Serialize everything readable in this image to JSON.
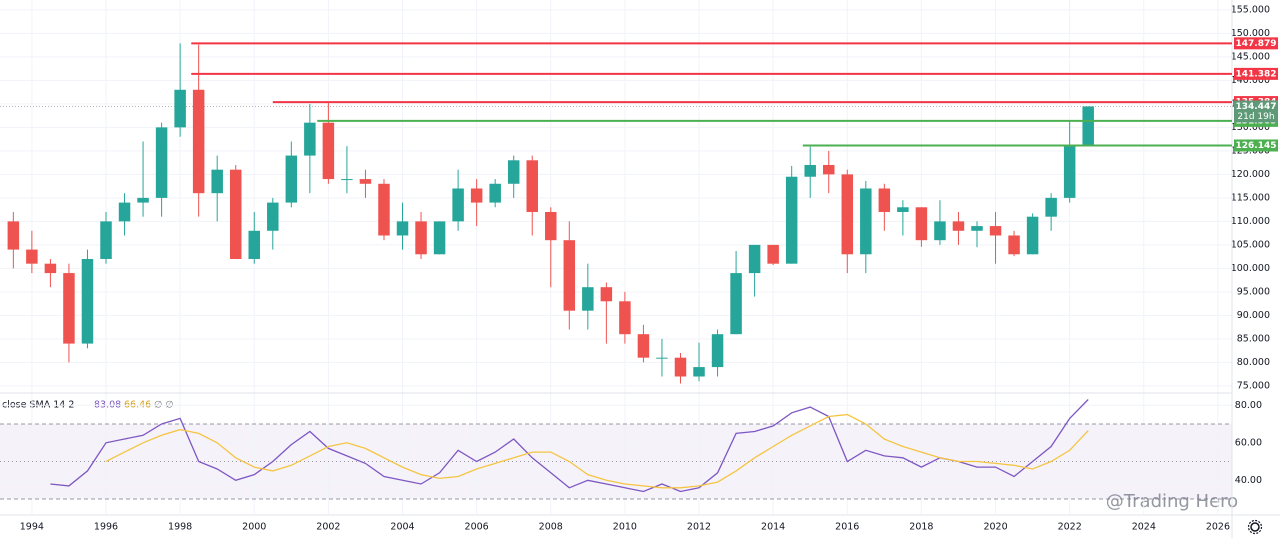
{
  "chart_data": {
    "type": "candlestick",
    "x": [
      1993.5,
      1994,
      1994.5,
      1995,
      1995.5,
      1996,
      1996.5,
      1997,
      1997.5,
      1998,
      1998.5,
      1999,
      1999.5,
      2000,
      2000.5,
      2001,
      2001.5,
      2002,
      2002.5,
      2003,
      2003.5,
      2004,
      2004.5,
      2005,
      2005.5,
      2006,
      2006.5,
      2007,
      2007.5,
      2008,
      2008.5,
      2009,
      2009.5,
      2010,
      2010.5,
      2011,
      2011.5,
      2012,
      2012.5,
      2013,
      2013.5,
      2014,
      2014.5,
      2015,
      2015.5,
      2016,
      2016.5,
      2017,
      2017.5,
      2018,
      2018.5,
      2019,
      2019.5,
      2020,
      2020.5,
      2021,
      2021.5,
      2022,
      2022.5
    ],
    "open": [
      110,
      104,
      101,
      99,
      84,
      102,
      110,
      114,
      115,
      130,
      138,
      116,
      121,
      102,
      108,
      114,
      124,
      131,
      119,
      119,
      118,
      107,
      110,
      103,
      110,
      117,
      114,
      118,
      123,
      112,
      106,
      91,
      96,
      93,
      86,
      81,
      81,
      77,
      79,
      86,
      99,
      105,
      101,
      119.5,
      122,
      120,
      103,
      117,
      112,
      113,
      106,
      110,
      108,
      109,
      107,
      103,
      111,
      115,
      126
    ],
    "high": [
      112,
      108,
      102,
      101,
      104,
      112,
      116,
      127,
      131,
      147.879,
      147.6,
      124,
      122,
      112,
      115,
      127,
      135,
      135.384,
      126,
      121,
      119,
      114,
      112,
      110,
      121,
      119,
      119,
      124,
      124,
      113,
      110,
      101,
      97,
      95,
      88,
      85,
      82,
      84.2,
      87,
      103.7,
      105,
      105,
      121.8,
      125.9,
      125,
      121,
      118.6,
      118,
      114.5,
      113,
      114.5,
      112,
      110,
      112,
      108,
      111.7,
      116,
      131.3,
      134.5
    ],
    "low": [
      100,
      99,
      96,
      80,
      83,
      101,
      107,
      111,
      111,
      128,
      111,
      110,
      102,
      101,
      104,
      113,
      116,
      118,
      116,
      115,
      106,
      104,
      102,
      103,
      108,
      109,
      113,
      115,
      107,
      96,
      87,
      87,
      84,
      84,
      80,
      77,
      75.5,
      76,
      77,
      86,
      94,
      100.7,
      101,
      115,
      116,
      99,
      99,
      108,
      107,
      104.6,
      105,
      105,
      104.5,
      101,
      102.6,
      103,
      108,
      114,
      126
    ],
    "close": [
      104,
      101,
      99,
      84,
      102,
      110,
      114,
      115,
      130,
      138,
      116,
      121,
      102,
      108,
      114,
      124,
      131,
      119,
      119,
      118,
      107,
      110,
      103,
      110,
      117,
      114,
      118,
      123,
      112,
      106,
      91,
      96,
      93,
      86,
      81,
      81,
      77,
      79,
      86,
      99,
      105,
      101,
      119.5,
      122,
      120,
      103,
      117,
      112,
      113,
      106,
      110,
      108,
      109,
      107,
      103,
      111,
      115,
      126,
      134.447
    ],
    "colors": {
      "up": "#26a69a",
      "down": "#ef5350"
    },
    "xlim": [
      1993.14,
      2026.38
    ],
    "xticks": [
      1994,
      1996,
      1998,
      2000,
      2002,
      2004,
      2006,
      2008,
      2010,
      2012,
      2014,
      2016,
      2018,
      2020,
      2022,
      2024,
      2026
    ],
    "ylim": [
      73.7,
      157.1
    ],
    "yticks": [
      {
        "value": 75,
        "label": "75.000"
      },
      {
        "value": 80,
        "label": "80.000"
      },
      {
        "value": 85,
        "label": "85.000"
      },
      {
        "value": 90,
        "label": "90.000"
      },
      {
        "value": 95,
        "label": "95.000"
      },
      {
        "value": 100,
        "label": "100.000"
      },
      {
        "value": 105,
        "label": "105.000"
      },
      {
        "value": 110,
        "label": "110.000"
      },
      {
        "value": 115,
        "label": "115.000"
      },
      {
        "value": 120,
        "label": "120.000"
      },
      {
        "value": 125,
        "label": "125.000"
      },
      {
        "value": 130,
        "label": "130.000"
      },
      {
        "value": 135,
        "label": "135.000"
      },
      {
        "value": 140,
        "label": "140.000"
      },
      {
        "value": 145,
        "label": "145.000"
      },
      {
        "value": 150,
        "label": "150.000"
      },
      {
        "value": 155,
        "label": "155.000"
      }
    ],
    "grid": true,
    "levels": [
      {
        "value": 147.879,
        "color": "#f23645",
        "start": 1998.3
      },
      {
        "value": 141.382,
        "color": "#f23645",
        "start": 1998.3
      },
      {
        "value": 135.384,
        "color": "#f23645",
        "start": 2000.5
      },
      {
        "value": 131.385,
        "color": "#4caf50",
        "start": 2001.7
      },
      {
        "value": 126.145,
        "color": "#4caf50",
        "start": 2014.8
      }
    ],
    "last_price": {
      "value": 134.447,
      "countdown": "21d 19h",
      "color": "#5f9a78"
    },
    "indicator": {
      "type": "line",
      "label": "close SMA 14 2",
      "extras": "∅ ∅",
      "ylim": [
        22,
        86
      ],
      "yticks": [
        {
          "value": 40,
          "label": "40.00"
        },
        {
          "value": 60,
          "label": "60.00"
        },
        {
          "value": 80,
          "label": "80.00"
        }
      ],
      "band": [
        30,
        70
      ],
      "middle": 50,
      "band_color": "#7e57c2",
      "series": [
        {
          "color": "#7e57c2",
          "values": [
            null,
            null,
            38,
            37,
            45,
            60,
            62,
            64,
            70,
            73,
            50,
            46,
            40,
            43,
            50,
            59,
            66,
            57,
            53,
            49,
            42,
            40,
            38,
            44,
            56,
            50,
            55,
            62,
            52,
            44,
            36,
            40,
            38,
            36,
            34,
            38,
            34,
            36,
            44,
            65,
            66,
            69,
            76,
            79,
            74,
            50,
            56,
            53,
            52,
            47,
            52,
            50,
            47,
            47,
            42,
            50,
            58,
            73,
            83.08
          ]
        },
        {
          "color": "#f5c542",
          "values": [
            null,
            null,
            null,
            null,
            null,
            50,
            55,
            60,
            64,
            67,
            65,
            60,
            52,
            47,
            45,
            48,
            53,
            58,
            60,
            57,
            52,
            47,
            43,
            41,
            42,
            46,
            49,
            52,
            55,
            55,
            50,
            43,
            40,
            38,
            37,
            36,
            36,
            37,
            39,
            45,
            52,
            58,
            64,
            69,
            74,
            75,
            70,
            62,
            58,
            55,
            52,
            50,
            50,
            49,
            48,
            46,
            50,
            56,
            66.46
          ]
        }
      ]
    },
    "watermark": "@Trading Hero"
  }
}
